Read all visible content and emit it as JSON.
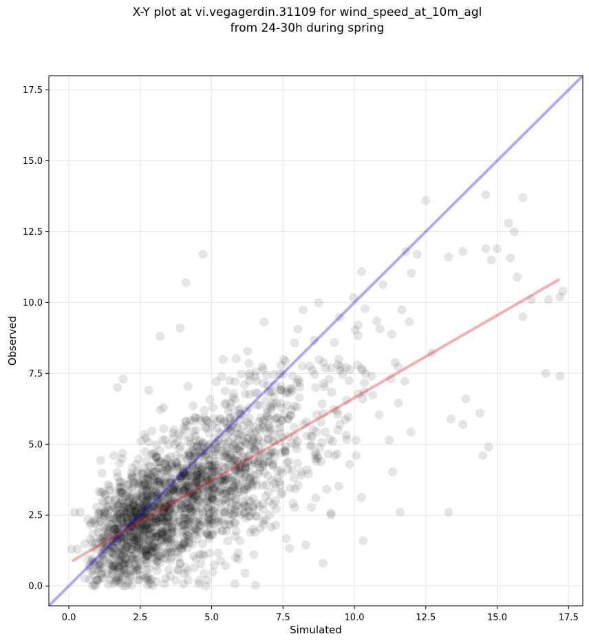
{
  "chart_data": {
    "type": "scatter",
    "title_line1": "X-Y plot at vi.vegagerdin.31109 for wind_speed_at_10m_agl",
    "title_line2": "from 24-30h during spring",
    "xlabel": "Simulated",
    "ylabel": "Observed",
    "xlim": [
      -0.7,
      18.0
    ],
    "ylim": [
      -0.7,
      18.0
    ],
    "xticks": [
      0.0,
      2.5,
      5.0,
      7.5,
      10.0,
      12.5,
      15.0,
      17.5
    ],
    "yticks": [
      0.0,
      2.5,
      5.0,
      7.5,
      10.0,
      12.5,
      15.0,
      17.5
    ],
    "tick_labels": [
      "0.0",
      "2.5",
      "5.0",
      "7.5",
      "10.0",
      "12.5",
      "15.0",
      "17.5"
    ],
    "grid": true,
    "point_color": "#000000",
    "point_alpha": 0.1,
    "point_count": 2000,
    "x_range_of_points": [
      0.1,
      17.2
    ],
    "one_to_one_line": {
      "color": "#0000ff",
      "alpha": 0.33,
      "from": [
        -0.7,
        -0.7
      ],
      "to": [
        18.0,
        18.0
      ]
    },
    "fit_line": {
      "color": "#e31a1c",
      "alpha": 0.35,
      "from": [
        0.15,
        0.9
      ],
      "to": [
        17.15,
        10.8
      ]
    },
    "highlighted_points": [
      {
        "x": 4.7,
        "y": 11.7
      },
      {
        "x": 4.1,
        "y": 10.7
      },
      {
        "x": 12.5,
        "y": 13.6
      },
      {
        "x": 14.6,
        "y": 13.8
      },
      {
        "x": 15.9,
        "y": 13.7
      },
      {
        "x": 15.4,
        "y": 12.8
      },
      {
        "x": 15.6,
        "y": 12.5
      },
      {
        "x": 15.0,
        "y": 11.9
      },
      {
        "x": 14.6,
        "y": 11.9
      },
      {
        "x": 14.8,
        "y": 11.5
      },
      {
        "x": 13.8,
        "y": 11.8
      },
      {
        "x": 13.3,
        "y": 11.6
      },
      {
        "x": 11.8,
        "y": 11.8
      },
      {
        "x": 12.2,
        "y": 11.7
      },
      {
        "x": 16.2,
        "y": 10.1
      },
      {
        "x": 16.8,
        "y": 10.1
      },
      {
        "x": 17.3,
        "y": 10.4
      },
      {
        "x": 17.2,
        "y": 10.2
      },
      {
        "x": 15.9,
        "y": 9.5
      },
      {
        "x": 15.7,
        "y": 10.9
      },
      {
        "x": 16.7,
        "y": 7.5
      },
      {
        "x": 17.2,
        "y": 7.4
      },
      {
        "x": 13.3,
        "y": 2.6
      },
      {
        "x": 11.6,
        "y": 2.6
      },
      {
        "x": 10.3,
        "y": 1.6
      },
      {
        "x": 8.9,
        "y": 0.8
      },
      {
        "x": 4.8,
        "y": 0.0
      },
      {
        "x": 14.7,
        "y": 4.9
      },
      {
        "x": 14.5,
        "y": 4.6
      },
      {
        "x": 14.4,
        "y": 6.1
      },
      {
        "x": 3.9,
        "y": 9.1
      },
      {
        "x": 3.2,
        "y": 8.8
      },
      {
        "x": 1.9,
        "y": 7.3
      },
      {
        "x": 1.7,
        "y": 7.0
      },
      {
        "x": 2.8,
        "y": 6.9
      },
      {
        "x": 0.4,
        "y": 2.6
      },
      {
        "x": 0.2,
        "y": 2.6
      },
      {
        "x": 0.3,
        "y": 1.3
      },
      {
        "x": 0.1,
        "y": 1.3
      },
      {
        "x": 2.0,
        "y": 0.0
      },
      {
        "x": 13.8,
        "y": 5.7
      },
      {
        "x": 13.9,
        "y": 6.6
      }
    ]
  }
}
